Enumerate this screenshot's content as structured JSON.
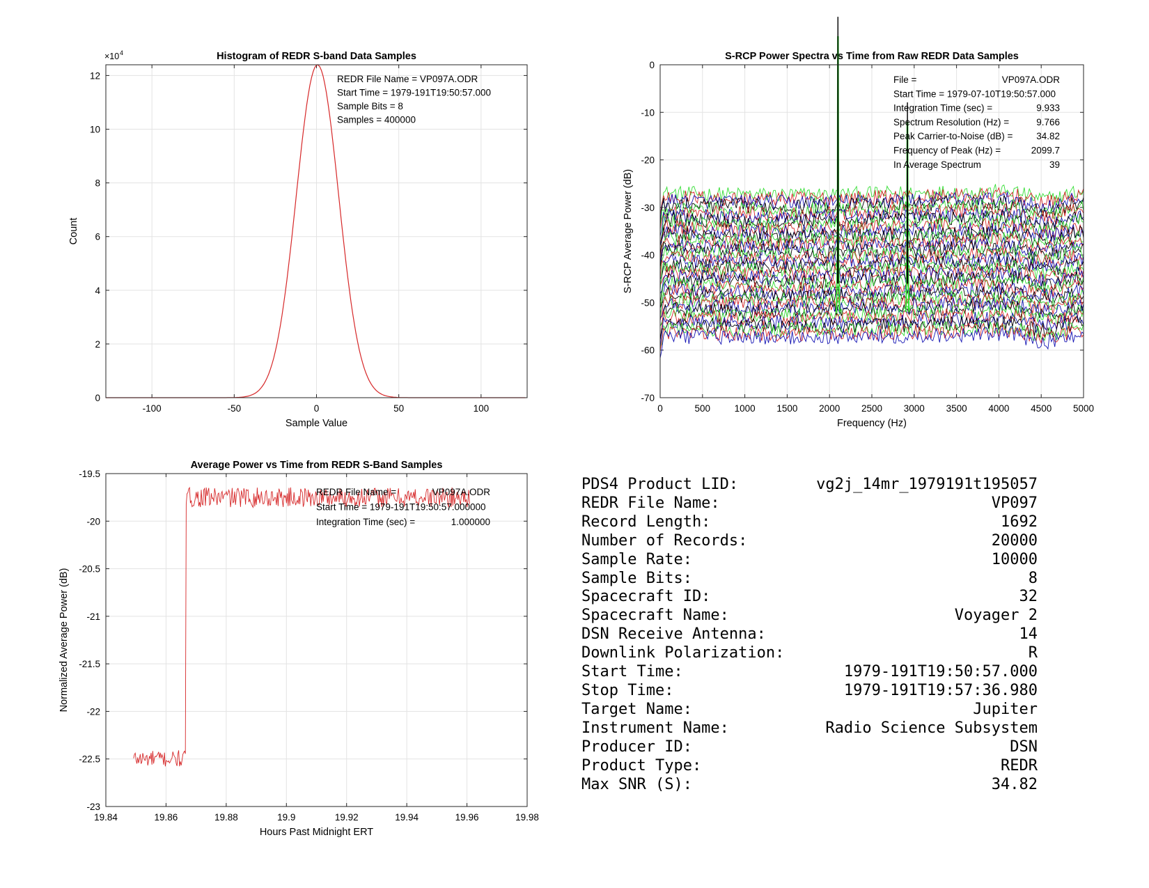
{
  "colors": {
    "red": "#d62728",
    "green": "#33dd33",
    "blue": "#1414b4",
    "black": "#000000",
    "grid": "#e3e3e3",
    "axis": "#262626"
  },
  "chart_data": [
    {
      "type": "line",
      "title": "Histogram of REDR S-band Data Samples",
      "xlabel": "Sample Value",
      "ylabel": "Count",
      "y_exponent": "×10",
      "y_exponent_power": "4",
      "xlim": [
        -128,
        128
      ],
      "ylim": [
        0,
        12.4
      ],
      "xticks": [
        -100,
        -50,
        0,
        50,
        100
      ],
      "yticks": [
        0,
        2,
        4,
        6,
        8,
        10,
        12
      ],
      "grid": true,
      "series": [
        {
          "color": "red",
          "shape": "gaussian",
          "mean": 0.6,
          "sigma": 12.9,
          "peak": 12.4,
          "x_range": [
            -128,
            127
          ]
        }
      ],
      "annotations": [
        {
          "label": "REDR File Name = VP097A.ODR",
          "value": ""
        },
        {
          "label": "Start Time = 1979-191T19:50:57.000",
          "value": ""
        },
        {
          "label": "Sample Bits = 8",
          "value": ""
        },
        {
          "label": "Samples = 400000",
          "value": ""
        }
      ]
    },
    {
      "type": "line",
      "title": "S-RCP Power Spectra vs Time from Raw REDR Data Samples",
      "xlabel": "Frequency (Hz)",
      "ylabel": "S-RCP Average Power (dB)",
      "xlim": [
        0,
        5000
      ],
      "ylim": [
        -70,
        0
      ],
      "xticks": [
        0,
        500,
        1000,
        1500,
        2000,
        2500,
        3000,
        3500,
        4000,
        4500,
        5000
      ],
      "yticks": [
        0,
        -10,
        -20,
        -30,
        -40,
        -50,
        -60,
        -70
      ],
      "grid": true,
      "series_color_cycle": [
        "green",
        "red",
        "blue",
        "black"
      ],
      "series_count": 39,
      "baseline_top_db": -27,
      "baseline_bottom_db": -57,
      "noise_db": 1.0,
      "carrier_peaks": [
        {
          "freq": 2099.7,
          "peak_db": -2
        },
        {
          "freq": 2920,
          "peak_db": -20
        }
      ],
      "annotations": [
        {
          "label": "File =",
          "value": "VP097A.ODR"
        },
        {
          "label": "Start Time = 1979-07-10T19:50:57.000",
          "value": ""
        },
        {
          "label": "Integration Time (sec) =",
          "value": "9.933"
        },
        {
          "label": "Spectrum Resolution (Hz) =",
          "value": "9.766"
        },
        {
          "label": "Peak Carrier-to-Noise (dB) =",
          "value": "34.82"
        },
        {
          "label": "Frequency of Peak (Hz) =",
          "value": "2099.7"
        },
        {
          "label": "In Average Spectrum",
          "value": "39"
        }
      ]
    },
    {
      "type": "line",
      "title": "Average Power vs Time from REDR S-Band Samples",
      "xlabel": "Hours Past Midnight ERT",
      "ylabel": "Normalized Average Power (dB)",
      "xlim": [
        19.84,
        19.98
      ],
      "ylim": [
        -23,
        -19.5
      ],
      "xticks": [
        19.84,
        19.86,
        19.88,
        19.9,
        19.92,
        19.94,
        19.96,
        19.98
      ],
      "ytick_labels": [
        "-19.5",
        "-20",
        "-20.5",
        "-21",
        "-21.5",
        "-22",
        "-22.5",
        "-23"
      ],
      "yticks": [
        -19.5,
        -20,
        -20.5,
        -21,
        -21.5,
        -22,
        -22.5,
        -23
      ],
      "grid": true,
      "series": [
        {
          "color": "red",
          "segments": [
            {
              "x_start": 19.8492,
              "x_end": 19.8665,
              "mean": -22.5,
              "noise": 0.06
            },
            {
              "x_start": 19.8667,
              "x_end": 19.9611,
              "mean": -19.75,
              "noise": 0.07
            }
          ]
        }
      ],
      "annotations": [
        {
          "label": "REDR File Name =",
          "value": "VP097A.ODR"
        },
        {
          "label": "Start Time = 1979-191T19:50:57.000000",
          "value": ""
        },
        {
          "label": "Integration Time (sec) =",
          "value": "1.000000"
        }
      ]
    }
  ],
  "metadata_table": [
    {
      "label": "PDS4 Product LID:",
      "value": "vg2j_14mr_1979191t195057"
    },
    {
      "label": "REDR File Name:",
      "value": "VP097"
    },
    {
      "label": "Record Length:",
      "value": "1692"
    },
    {
      "label": "Number of Records:",
      "value": "20000"
    },
    {
      "label": "Sample Rate:",
      "value": "10000"
    },
    {
      "label": "Sample Bits:",
      "value": "8"
    },
    {
      "label": "Spacecraft ID:",
      "value": "32"
    },
    {
      "label": "Spacecraft Name:",
      "value": "Voyager 2"
    },
    {
      "label": "DSN Receive Antenna:",
      "value": "14"
    },
    {
      "label": "Downlink Polarization:",
      "value": "R"
    },
    {
      "label": "Start Time:",
      "value": "1979-191T19:50:57.000"
    },
    {
      "label": "Stop Time:",
      "value": "1979-191T19:57:36.980"
    },
    {
      "label": "Target Name:",
      "value": "Jupiter"
    },
    {
      "label": "Instrument Name:",
      "value": "Radio Science Subsystem"
    },
    {
      "label": "Producer ID:",
      "value": "DSN"
    },
    {
      "label": "Product Type:",
      "value": "REDR"
    },
    {
      "label": "Max SNR (S):",
      "value": "34.82"
    }
  ]
}
